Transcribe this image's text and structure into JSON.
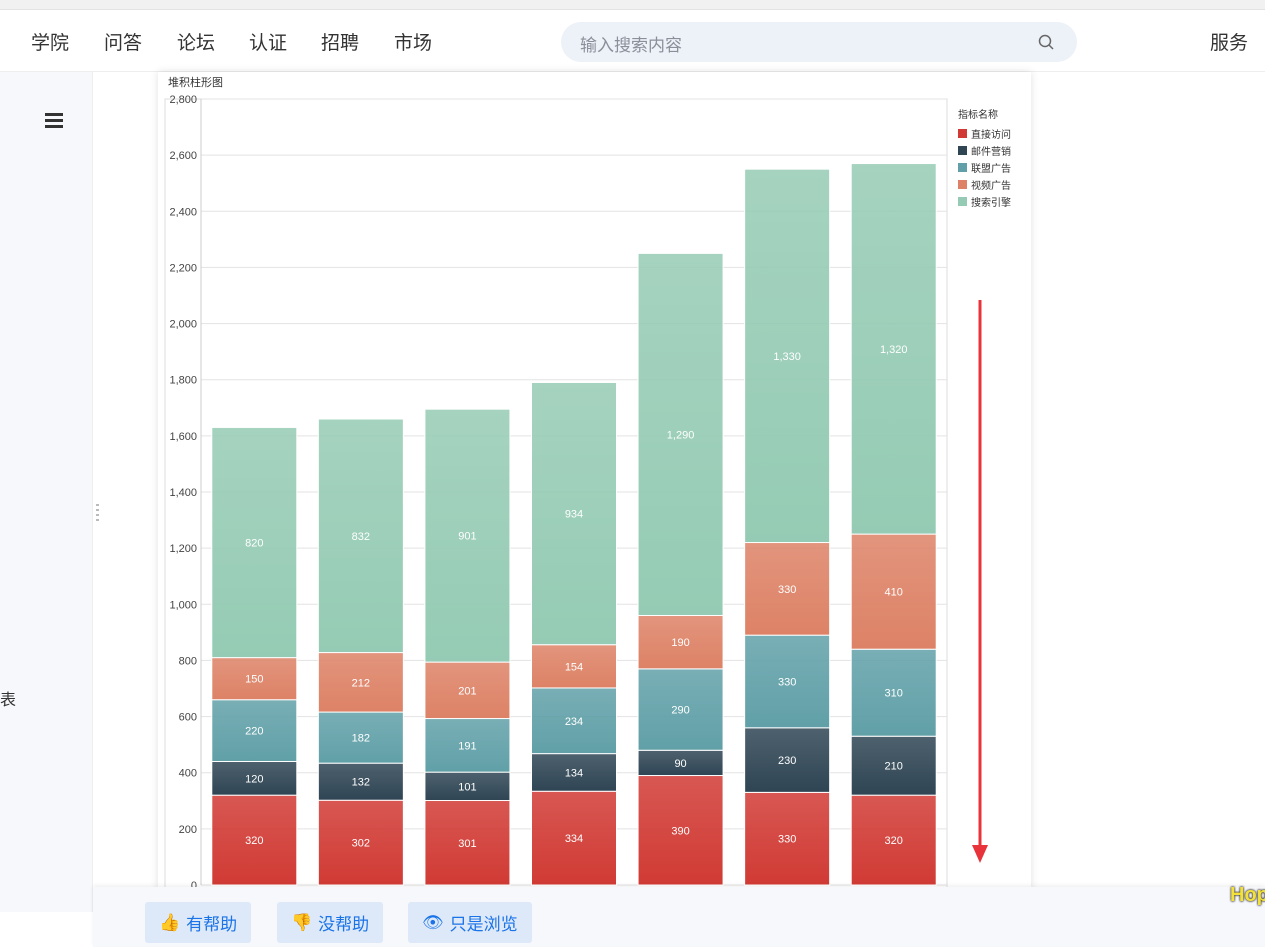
{
  "nav": {
    "items": [
      "学院",
      "问答",
      "论坛",
      "认证",
      "招聘",
      "市场"
    ],
    "right": "服务",
    "search_placeholder": "输入搜索内容"
  },
  "sidebar": {
    "partial_text": "表"
  },
  "footer": {
    "helpful": "有帮助",
    "not_helpful": "没帮助",
    "just_browsing": "只是浏览"
  },
  "overlay_text": "Hop",
  "chart_data": {
    "type": "bar",
    "stacked": true,
    "title": "堆积柱形图",
    "legend_title": "指标名称",
    "legend_position": "right",
    "ylim": [
      0,
      2800
    ],
    "yticks": [
      "0",
      "200",
      "400",
      "600",
      "800",
      "1,000",
      "1,200",
      "1,400",
      "1,600",
      "1,800",
      "2,000",
      "2,200",
      "2,400",
      "2,600",
      "2,800"
    ],
    "grid": true,
    "series": [
      {
        "name": "直接访问",
        "color": "#d13a34",
        "values": [
          320,
          302,
          301,
          334,
          390,
          330,
          320
        ]
      },
      {
        "name": "邮件营销",
        "color": "#2f4554",
        "values": [
          120,
          132,
          101,
          134,
          90,
          230,
          210
        ]
      },
      {
        "name": "联盟广告",
        "color": "#61a0a8",
        "values": [
          220,
          182,
          191,
          234,
          290,
          330,
          310
        ]
      },
      {
        "name": "视频广告",
        "color": "#dd8266",
        "values": [
          150,
          212,
          201,
          154,
          190,
          330,
          410
        ]
      },
      {
        "name": "搜索引擎",
        "color": "#95cbb4",
        "values": [
          820,
          832,
          901,
          934,
          1290,
          1330,
          1320
        ]
      }
    ]
  }
}
